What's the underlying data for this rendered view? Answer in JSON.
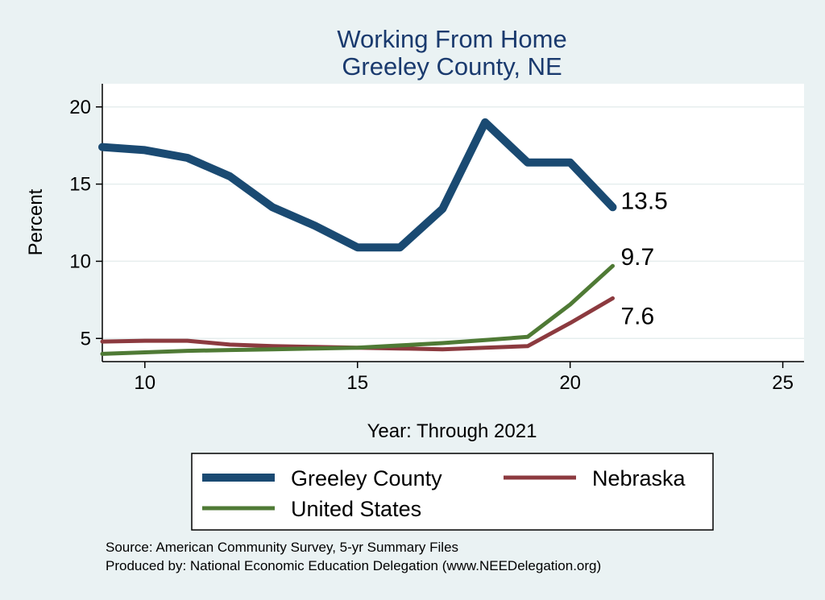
{
  "chart_data": {
    "type": "line",
    "title": [
      "Working From Home",
      "Greeley County, NE"
    ],
    "xlabel": "Year: Through 2021",
    "ylabel": "Percent",
    "xlim": [
      9,
      25.5
    ],
    "ylim": [
      3.5,
      21.5
    ],
    "xticks": [
      10,
      15,
      20,
      25
    ],
    "yticks": [
      5,
      10,
      15,
      20
    ],
    "grid": true,
    "legend_position": "bottom",
    "series": [
      {
        "name": "Greeley County",
        "color": "#1a4a72",
        "x": [
          9,
          10,
          11,
          12,
          13,
          14,
          15,
          16,
          17,
          18,
          19,
          20,
          21
        ],
        "y": [
          17.4,
          17.2,
          16.7,
          15.5,
          13.5,
          12.3,
          10.9,
          10.9,
          13.4,
          19.0,
          16.4,
          16.4,
          13.5
        ],
        "end_label": "13.5"
      },
      {
        "name": "Nebraska",
        "color": "#8c3a3f",
        "x": [
          9,
          10,
          11,
          12,
          13,
          14,
          15,
          16,
          17,
          18,
          19,
          20,
          21
        ],
        "y": [
          4.8,
          4.85,
          4.85,
          4.6,
          4.5,
          4.45,
          4.4,
          4.35,
          4.3,
          4.4,
          4.5,
          6.0,
          7.6
        ],
        "end_label": "7.6"
      },
      {
        "name": "United States",
        "color": "#4f7a35",
        "x": [
          9,
          10,
          11,
          12,
          13,
          14,
          15,
          16,
          17,
          18,
          19,
          20,
          21
        ],
        "y": [
          4.0,
          4.1,
          4.2,
          4.25,
          4.3,
          4.35,
          4.4,
          4.55,
          4.7,
          4.9,
          5.1,
          7.2,
          9.7
        ],
        "end_label": "9.7"
      }
    ],
    "notes": [
      "Source: American Community Survey, 5-yr Summary Files",
      "Produced by: National Economic Education Delegation (www.NEEDelegation.org)"
    ]
  }
}
